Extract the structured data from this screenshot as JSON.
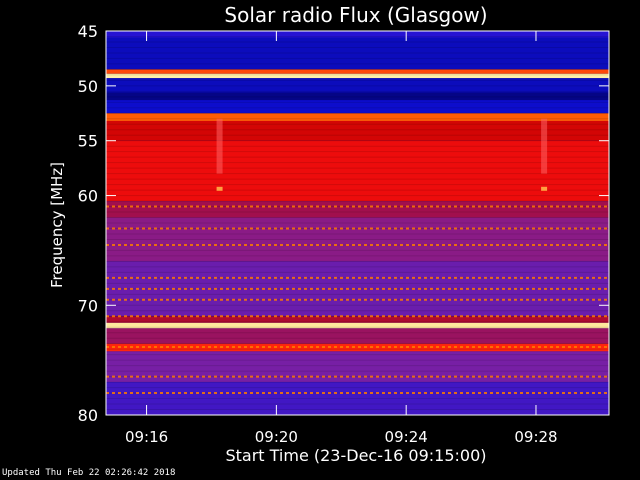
{
  "chart_data": {
    "type": "heatmap",
    "title": "Solar radio Flux (Glasgow)",
    "xlabel": "Start Time (23-Dec-16 09:15:00)",
    "ylabel": "Frequency [MHz]",
    "xlim": [
      "09:14:45",
      "09:30:15"
    ],
    "ylim": [
      45,
      80
    ],
    "x_ticks": [
      "09:16",
      "09:20",
      "09:24",
      "09:28"
    ],
    "x_tick_minutes": [
      16,
      20,
      24,
      28
    ],
    "y_ticks": [
      45,
      50,
      55,
      60,
      70,
      80
    ],
    "colorscale": [
      "#000060",
      "#1010e0",
      "#8020a0",
      "#c00000",
      "#ff1010",
      "#ff8000",
      "#ffffc0"
    ],
    "intensity_bands": [
      {
        "from_mhz": 45.0,
        "to_mhz": 45.6,
        "level": 0.2
      },
      {
        "from_mhz": 45.6,
        "to_mhz": 48.5,
        "level": 0.12
      },
      {
        "from_mhz": 48.5,
        "to_mhz": 48.9,
        "level": 0.75
      },
      {
        "from_mhz": 48.9,
        "to_mhz": 49.3,
        "level": 0.98
      },
      {
        "from_mhz": 49.3,
        "to_mhz": 50.6,
        "level": 0.12
      },
      {
        "from_mhz": 50.6,
        "to_mhz": 51.3,
        "level": 0.05
      },
      {
        "from_mhz": 51.3,
        "to_mhz": 52.5,
        "level": 0.14
      },
      {
        "from_mhz": 52.5,
        "to_mhz": 53.2,
        "level": 0.78
      },
      {
        "from_mhz": 53.2,
        "to_mhz": 55.0,
        "level": 0.55
      },
      {
        "from_mhz": 55.0,
        "to_mhz": 60.5,
        "level": 0.62
      },
      {
        "from_mhz": 60.5,
        "to_mhz": 62.0,
        "level": 0.42
      },
      {
        "from_mhz": 62.0,
        "to_mhz": 66.0,
        "level": 0.36
      },
      {
        "from_mhz": 66.0,
        "to_mhz": 71.0,
        "level": 0.3
      },
      {
        "from_mhz": 71.0,
        "to_mhz": 71.6,
        "level": 0.45
      },
      {
        "from_mhz": 71.6,
        "to_mhz": 72.1,
        "level": 0.97
      },
      {
        "from_mhz": 72.1,
        "to_mhz": 73.5,
        "level": 0.4
      },
      {
        "from_mhz": 73.5,
        "to_mhz": 74.2,
        "level": 0.7
      },
      {
        "from_mhz": 74.2,
        "to_mhz": 77.0,
        "level": 0.32
      },
      {
        "from_mhz": 77.0,
        "to_mhz": 80.0,
        "level": 0.24
      }
    ],
    "spectral_lines_mhz": [
      61.0,
      63.0,
      64.5,
      67.5,
      68.5,
      69.5,
      71.0,
      73.8,
      76.5,
      78.0
    ],
    "bursts": [
      {
        "time": "09:18:15",
        "from_mhz": 53.0,
        "to_mhz": 58.0
      },
      {
        "time": "09:28:15",
        "from_mhz": 53.0,
        "to_mhz": 58.0
      }
    ]
  },
  "footer": "Updated Thu Feb 22 02:26:42 2018"
}
